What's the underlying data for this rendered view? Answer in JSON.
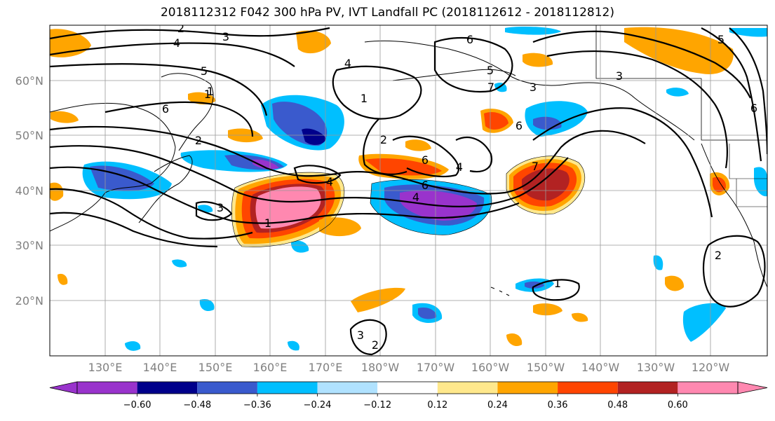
{
  "title": "2018112312 F042 300 hPa PV, IVT Landfall PC (2018112612 - 2018112812)",
  "map": {
    "lon_labels": [
      "130°E",
      "140°E",
      "150°E",
      "160°E",
      "170°E",
      "180°W",
      "170°W",
      "160°W",
      "150°W",
      "140°W",
      "130°W",
      "120°W"
    ],
    "lat_labels": [
      "60°N",
      "50°N",
      "40°N",
      "30°N",
      "20°N"
    ],
    "contour_labels": [
      "2",
      "3",
      "4",
      "5",
      "1",
      "6",
      "2",
      "3",
      "4",
      "1",
      "2",
      "6",
      "4",
      "5",
      "3",
      "6",
      "7",
      "6",
      "1",
      "2",
      "2",
      "3",
      "6",
      "5",
      "3",
      "7",
      "6",
      "4",
      "1",
      "4",
      "1"
    ]
  },
  "colorbar": {
    "colors": [
      "#9933cc",
      "#00008b",
      "#3a5acd",
      "#00bfff",
      "#b0e2ff",
      "#ffffff",
      "#ffe88c",
      "#ffa500",
      "#ff4500",
      "#b22222",
      "#ff88b0"
    ],
    "tick_labels": [
      "−0.60",
      "−0.48",
      "−0.36",
      "−0.24",
      "−0.12",
      "0.12",
      "0.24",
      "0.36",
      "0.48",
      "0.60"
    ]
  }
}
